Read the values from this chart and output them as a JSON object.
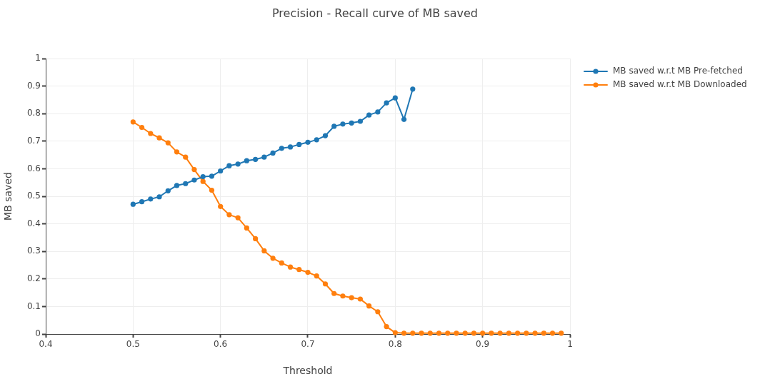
{
  "chart_data": {
    "type": "line",
    "title": "Precision - Recall curve of MB saved",
    "xlabel": "Threshold",
    "ylabel": "MB saved",
    "series": [
      {
        "name": "MB saved w.r.t MB Pre-fetched",
        "color": "#1f77b4",
        "x": [
          0.5,
          0.51,
          0.52,
          0.53,
          0.54,
          0.55,
          0.56,
          0.57,
          0.58,
          0.59,
          0.6,
          0.61,
          0.62,
          0.63,
          0.64,
          0.65,
          0.66,
          0.67,
          0.68,
          0.69,
          0.7,
          0.71,
          0.72,
          0.73,
          0.74,
          0.75,
          0.76,
          0.77,
          0.78,
          0.79,
          0.8,
          0.81,
          0.82
        ],
        "values": [
          0.471,
          0.48,
          0.49,
          0.498,
          0.52,
          0.539,
          0.546,
          0.559,
          0.571,
          0.573,
          0.592,
          0.611,
          0.617,
          0.629,
          0.634,
          0.642,
          0.657,
          0.674,
          0.679,
          0.688,
          0.696,
          0.705,
          0.72,
          0.754,
          0.762,
          0.766,
          0.772,
          0.795,
          0.806,
          0.839,
          0.857,
          0.779,
          0.889
        ]
      },
      {
        "name": "MB saved w.r.t MB Downloaded",
        "color": "#ff7f0e",
        "x": [
          0.5,
          0.51,
          0.52,
          0.53,
          0.54,
          0.55,
          0.56,
          0.57,
          0.58,
          0.59,
          0.6,
          0.61,
          0.62,
          0.63,
          0.64,
          0.65,
          0.66,
          0.67,
          0.68,
          0.69,
          0.7,
          0.71,
          0.72,
          0.73,
          0.74,
          0.75,
          0.76,
          0.77,
          0.78,
          0.79,
          0.8,
          0.81,
          0.82,
          0.83,
          0.84,
          0.85,
          0.86,
          0.87,
          0.88,
          0.89,
          0.9,
          0.91,
          0.92,
          0.93,
          0.94,
          0.95,
          0.96,
          0.97,
          0.98,
          0.99
        ],
        "values": [
          0.77,
          0.75,
          0.728,
          0.712,
          0.694,
          0.661,
          0.642,
          0.597,
          0.554,
          0.522,
          0.463,
          0.433,
          0.422,
          0.385,
          0.346,
          0.302,
          0.275,
          0.258,
          0.243,
          0.234,
          0.224,
          0.211,
          0.182,
          0.147,
          0.138,
          0.132,
          0.127,
          0.102,
          0.081,
          0.027,
          0.005,
          0.003,
          0.003,
          0.003,
          0.003,
          0.003,
          0.003,
          0.003,
          0.003,
          0.003,
          0.003,
          0.003,
          0.003,
          0.003,
          0.003,
          0.003,
          0.003,
          0.003,
          0.003,
          0.003
        ]
      }
    ],
    "xlim": [
      0.4,
      1
    ],
    "xticks": [
      0.4,
      0.5,
      0.6,
      0.7,
      0.8,
      0.9,
      1
    ],
    "ylim": [
      0,
      1
    ],
    "yticks": [
      0,
      0.1,
      0.2,
      0.3,
      0.4,
      0.5,
      0.6,
      0.7,
      0.8,
      0.9,
      1
    ],
    "grid": true,
    "legend": "top right",
    "marker": "circle",
    "line_style": "solid"
  }
}
